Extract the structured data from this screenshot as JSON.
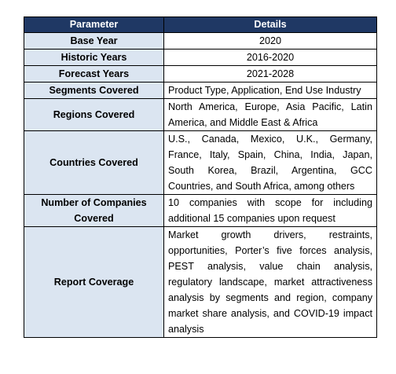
{
  "header": {
    "parameter": "Parameter",
    "details": "Details"
  },
  "rows": [
    {
      "parameter": "Base Year",
      "details": "2020"
    },
    {
      "parameter": "Historic Years",
      "details": "2016-2020"
    },
    {
      "parameter": "Forecast Years",
      "details": "2021-2028"
    },
    {
      "parameter": "Segments Covered",
      "details": "Product Type, Application, End Use Industry"
    },
    {
      "parameter": "Regions Covered",
      "details": "North America, Europe, Asia Pacific, Latin America, and Middle East & Africa"
    },
    {
      "parameter": "Countries Covered",
      "details": "U.S., Canada, Mexico, U.K., Germany, France, Italy, Spain, China, India, Japan, South Korea, Brazil, Argentina, GCC Countries, and South Africa, among others"
    },
    {
      "parameter": "Number of Companies Covered",
      "details": "10 companies with scope for including additional 15 companies upon request"
    },
    {
      "parameter": "Report Coverage",
      "details": "Market growth drivers, restraints, opportunities, Porter’s five forces analysis, PEST analysis, value chain analysis, regulatory landscape, market attractiveness analysis by segments and region, company market share analysis, and COVID-19 impact analysis"
    }
  ],
  "colors": {
    "header_background": "#1f3864",
    "header_text": "#ffffff",
    "parameter_background": "#dbe5f1",
    "border": "#000000"
  }
}
